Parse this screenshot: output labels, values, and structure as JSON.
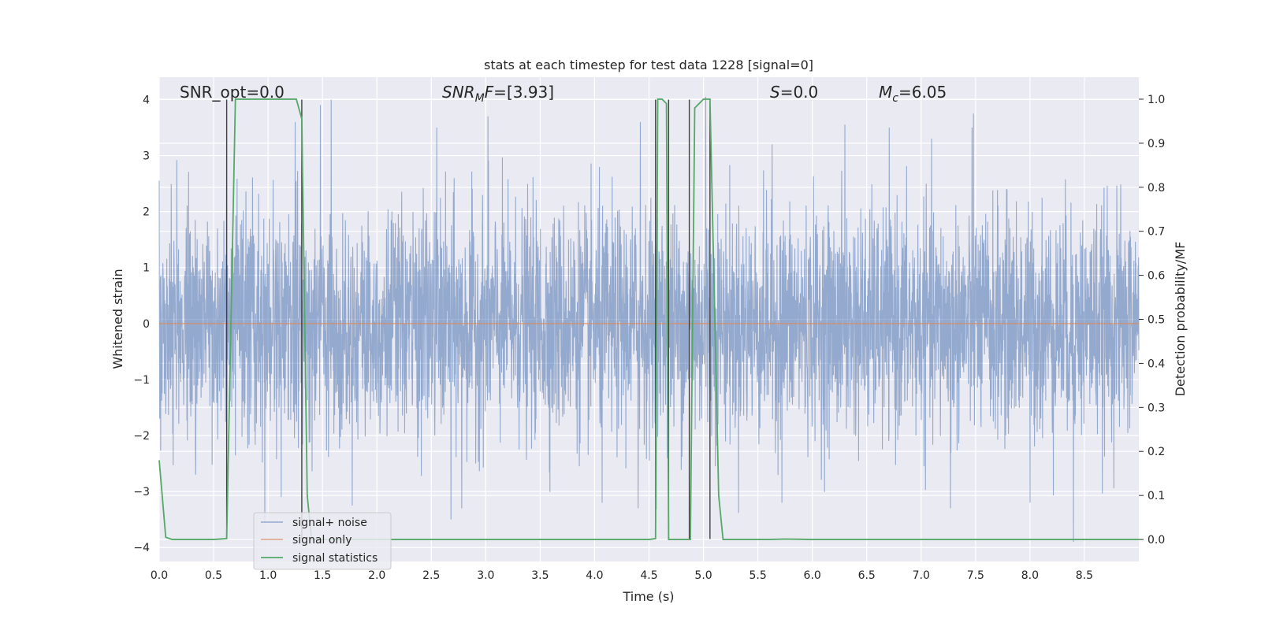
{
  "chart_data": {
    "type": "line",
    "title": "stats at each timestep for test data 1228 [signal=0]",
    "xlabel": "Time (s)",
    "ylabel_left": "Whitened strain",
    "ylabel_right": "Detection probability/MF",
    "xlim": [
      0.0,
      9.0
    ],
    "ylim_left": [
      -4.25,
      4.4
    ],
    "ylim_right": [
      -0.05,
      1.05
    ],
    "x_ticks": [
      "0.0",
      "0.5",
      "1.0",
      "1.5",
      "2.0",
      "2.5",
      "3.0",
      "3.5",
      "4.0",
      "4.5",
      "5.0",
      "5.5",
      "6.0",
      "6.5",
      "7.0",
      "7.5",
      "8.0",
      "8.5"
    ],
    "y_ticks_left": [
      "−4",
      "−3",
      "−2",
      "−1",
      "0",
      "1",
      "2",
      "3",
      "4"
    ],
    "y_ticks_right": [
      "0.0",
      "0.1",
      "0.2",
      "0.3",
      "0.4",
      "0.5",
      "0.6",
      "0.7",
      "0.8",
      "0.9",
      "1.0"
    ],
    "grid": true,
    "legend_position": "lower-left",
    "colors": {
      "signal_noise": "#4c72b0",
      "signal_only": "#dd8452",
      "signal_statistics": "#55a868",
      "event_lines": "#404040",
      "background": "#eaeaf2"
    },
    "annotations": {
      "snr_opt": "SNR_opt=0.0",
      "snr_mf": "[3.93]",
      "s_value": "=0.0",
      "mc_value": "=6.05"
    },
    "event_lines_x": [
      0.62,
      1.31,
      4.56,
      4.68,
      4.87,
      5.06
    ],
    "series": [
      {
        "name": "signal+ noise",
        "kind": "noise",
        "amplitude_sigma": 1.0,
        "peak_samples": [
          {
            "x": 0.0,
            "y": 2.55
          },
          {
            "x": 0.62,
            "y": 2.45
          },
          {
            "x": 1.25,
            "y": 3.6
          },
          {
            "x": 1.48,
            "y": 3.9
          },
          {
            "x": 1.58,
            "y": 4.0
          },
          {
            "x": 2.55,
            "y": 3.5
          },
          {
            "x": 3.02,
            "y": 3.7
          },
          {
            "x": 4.42,
            "y": 3.6
          },
          {
            "x": 5.02,
            "y": 4.05
          },
          {
            "x": 5.63,
            "y": 3.2
          },
          {
            "x": 6.3,
            "y": 3.55
          },
          {
            "x": 7.48,
            "y": 3.75
          },
          {
            "x": 8.4,
            "y": 3.3
          },
          {
            "x": 1.12,
            "y": -3.1
          },
          {
            "x": 2.68,
            "y": -3.5
          },
          {
            "x": 2.78,
            "y": -3.3
          },
          {
            "x": 4.07,
            "y": -3.2
          },
          {
            "x": 4.4,
            "y": -3.3
          },
          {
            "x": 5.72,
            "y": -3.2
          },
          {
            "x": 7.27,
            "y": -3.3
          },
          {
            "x": 8.0,
            "y": -3.2
          },
          {
            "x": 8.4,
            "y": -3.9
          }
        ]
      },
      {
        "name": "signal only",
        "kind": "line",
        "x": [
          0.0,
          9.0
        ],
        "y": [
          0.0,
          0.0
        ]
      },
      {
        "name": "signal statistics",
        "kind": "line",
        "x": [
          0.0,
          0.06,
          0.12,
          0.5,
          0.62,
          0.7,
          0.78,
          1.2,
          1.26,
          1.31,
          1.36,
          1.4,
          4.5,
          4.56,
          4.58,
          4.62,
          4.66,
          4.68,
          4.72,
          4.8,
          4.86,
          4.88,
          4.92,
          5.0,
          5.06,
          5.14,
          5.18,
          5.4,
          5.6,
          5.75,
          6.0,
          9.0
        ],
        "y": [
          0.18,
          0.005,
          0.0,
          0.0,
          0.002,
          1.0,
          1.0,
          1.0,
          1.0,
          0.955,
          0.1,
          0.0,
          0.0,
          0.002,
          1.0,
          1.0,
          0.99,
          0.0,
          0.0,
          0.0,
          0.0,
          0.0,
          0.98,
          1.0,
          1.0,
          0.1,
          0.0,
          0.0,
          0.0,
          0.001,
          0.0,
          0.0
        ]
      }
    ]
  }
}
